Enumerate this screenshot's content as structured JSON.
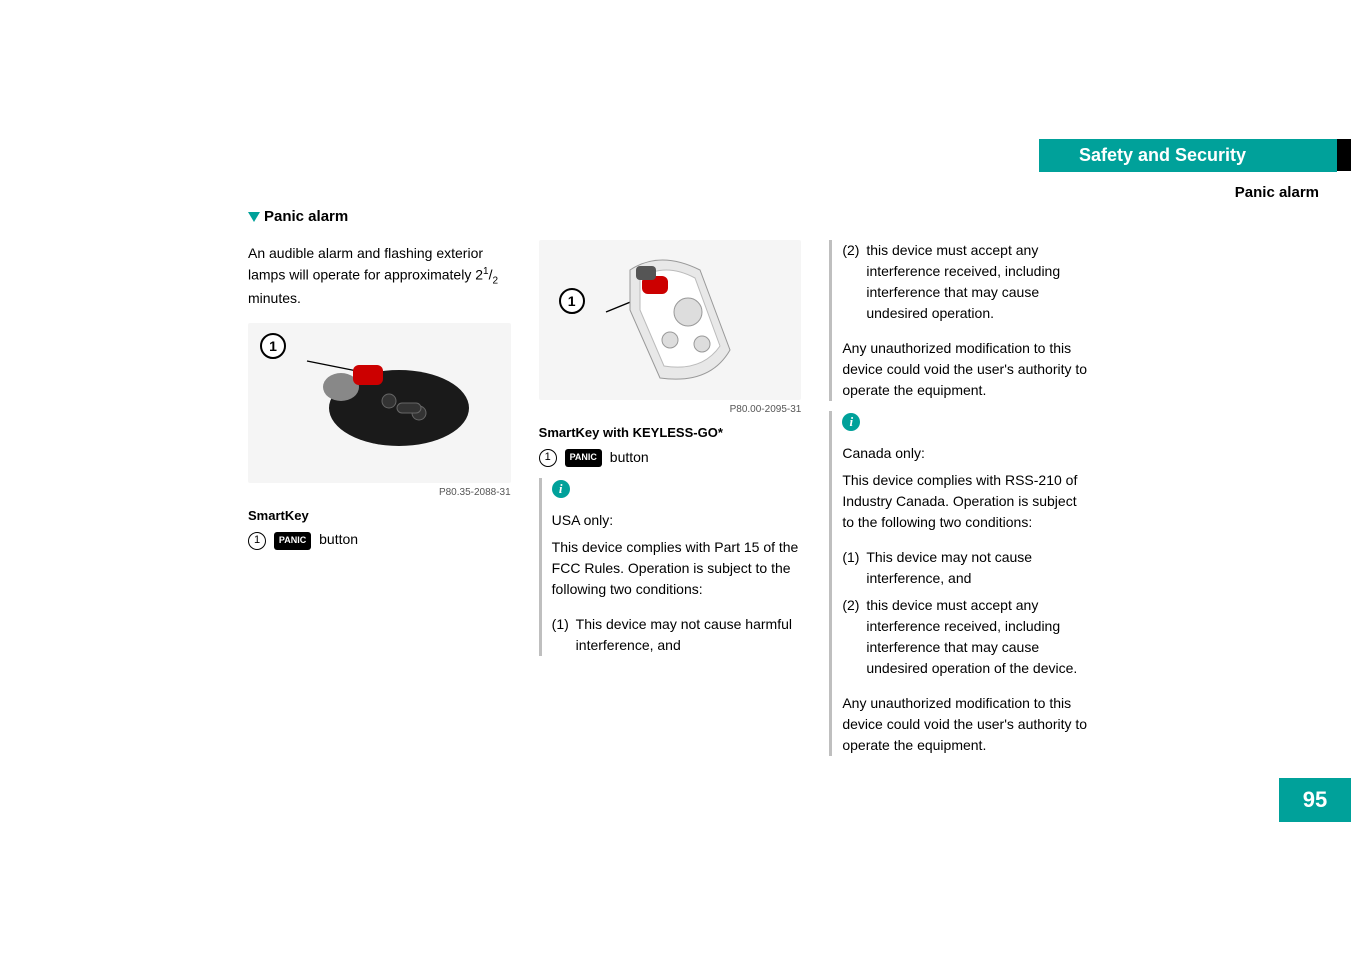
{
  "header": {
    "chapter": "Safety and Security",
    "section": "Panic alarm",
    "teal_color": "#00a19a"
  },
  "page_number": "95",
  "col1": {
    "heading": "Panic alarm",
    "intro_html": "An audible alarm and flashing exterior lamps will operate for approximately 2<sup>1</sup>/<sub>2</sub> minutes.",
    "figure_ref": "P80.35-2088-31",
    "fig_caption": "SmartKey",
    "callout_num": "1",
    "callout_badge": "PANIC",
    "callout_text": "button"
  },
  "col2": {
    "figure_ref": "P80.00-2095-31",
    "fig_caption": "SmartKey with KEYLESS-GO*",
    "callout_num": "1",
    "callout_badge": "PANIC",
    "callout_text": "button",
    "note_region": "USA only:",
    "note_body": "This device complies with Part 15 of the FCC Rules. Operation is subject to the following two conditions:",
    "cond1_num": "(1)",
    "cond1_text": "This device may not cause harmful interference, and"
  },
  "col3": {
    "cond2_num": "(2)",
    "cond2_text": "this device must accept any interference received, including interference that may cause undesired operation.",
    "tail": "Any unauthorized modification to this device could void the user's authority to operate the equipment.",
    "note2_region": "Canada only:",
    "note2_body": "This device complies with RSS-210 of Industry Canada. Operation is subject to the following two conditions:",
    "c2_cond1_num": "(1)",
    "c2_cond1_text": "This device may not cause interference, and",
    "c2_cond2_num": "(2)",
    "c2_cond2_text": "this device must accept any interference received, including interference that may cause undesired operation of the device.",
    "tail2": "Any unauthorized modification to this device could void the user's authority to operate the equipment."
  }
}
